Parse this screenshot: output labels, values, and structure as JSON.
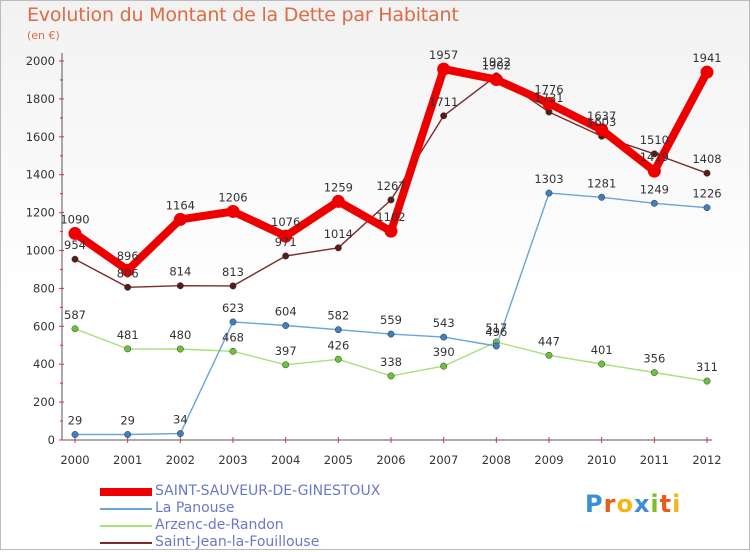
{
  "title": "Evolution du Montant de la Dette par Habitant",
  "unit_label": "(en €)",
  "brand": {
    "letters": [
      "P",
      "r",
      "o",
      "x",
      "i",
      "t",
      "i"
    ],
    "colors": [
      "#3a8fd6",
      "#e85a1e",
      "#f5b51a",
      "#3a8fd6",
      "#7bbf2a",
      "#e85a1e",
      "#f5b51a"
    ]
  },
  "chart_data": {
    "type": "line",
    "title": "Evolution du Montant de la Dette par Habitant",
    "ylabel": "(en €)",
    "xlabel": "",
    "x": [
      "2000",
      "2001",
      "2002",
      "2003",
      "2004",
      "2005",
      "2006",
      "2007",
      "2008",
      "2009",
      "2010",
      "2011",
      "2012"
    ],
    "ylim": [
      0,
      2000
    ],
    "yticks": [
      0,
      200,
      400,
      600,
      800,
      1000,
      1200,
      1400,
      1600,
      1800,
      2000
    ],
    "grid": false,
    "legend_position": "bottom-left",
    "series": [
      {
        "name": "SAINT-SAUVEUR-DE-GINESTOUX",
        "color": "#ee0000",
        "marker": "#ee0000",
        "values": [
          1090,
          896,
          1164,
          1206,
          1076,
          1259,
          1102,
          1957,
          1902,
          1776,
          1637,
          1419,
          1941
        ]
      },
      {
        "name": "La Panouse",
        "color": "#6aa4d8",
        "marker": "#3f7fc4",
        "values": [
          29,
          29,
          34,
          623,
          604,
          582,
          559,
          543,
          496,
          1303,
          1281,
          1249,
          1226
        ]
      },
      {
        "name": "Arzenc-de-Randon",
        "color": "#a8e07a",
        "marker": "#6cc23a",
        "values": [
          587,
          481,
          480,
          468,
          397,
          426,
          338,
          390,
          517,
          447,
          401,
          356,
          311
        ]
      },
      {
        "name": "Saint-Jean-la-Fouillouse",
        "color": "#7a2a2a",
        "marker": "#5a1a1a",
        "values": [
          954,
          806,
          814,
          813,
          971,
          1014,
          1267,
          1711,
          1922,
          1731,
          1603,
          1510,
          1408
        ]
      }
    ]
  }
}
